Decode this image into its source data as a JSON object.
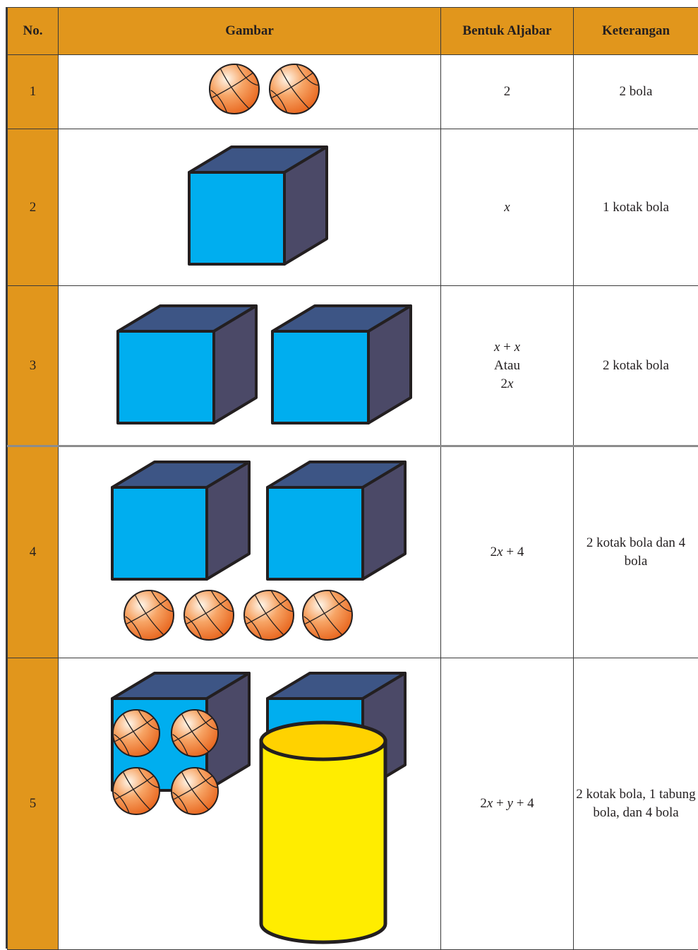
{
  "table": {
    "header": [
      "No.",
      "Gambar",
      "Bentuk Aljabar",
      "Keterangan"
    ],
    "rows": [
      {
        "no": "1",
        "algebra": [
          "2"
        ],
        "description": "2 bola"
      },
      {
        "no": "2",
        "algebra": [
          "x"
        ],
        "description": "1 kotak bola"
      },
      {
        "no": "3",
        "algebra": [
          "x + x",
          "Atau",
          "2x"
        ],
        "description": "2 kotak bola"
      },
      {
        "no": "4",
        "algebra": [
          "2x + 4"
        ],
        "description": "2 kotak bola dan 4 bola"
      },
      {
        "no": "5",
        "algebra": [
          "2x + y + 4"
        ],
        "description": "2 kotak bola, 1 tabung bola, dan 4 bola"
      }
    ]
  }
}
